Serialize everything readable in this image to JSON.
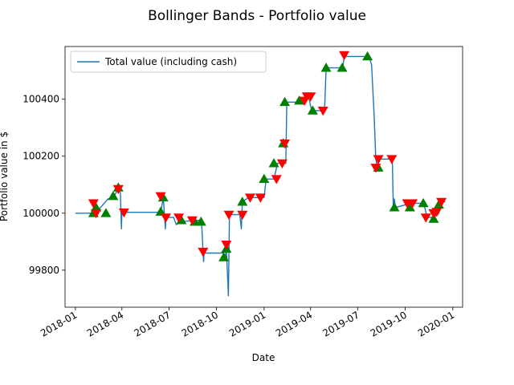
{
  "chart_data": {
    "type": "line",
    "title": "Bollinger Bands - Portfolio value",
    "xlabel": "Date",
    "ylabel": "Portfolio value in $",
    "xlim": [
      "2017-12-12",
      "2020-01-20"
    ],
    "ylim": [
      99670,
      100585
    ],
    "x_ticks": [
      "2018-01",
      "2018-04",
      "2018-07",
      "2018-10",
      "2019-01",
      "2019-04",
      "2019-07",
      "2019-10",
      "2020-01"
    ],
    "y_ticks": [
      99800,
      100000,
      100200,
      100400
    ],
    "grid": false,
    "legend": {
      "placement": "top-left",
      "entries": [
        "Total value (including cash)"
      ]
    },
    "colors": {
      "line": "#1f77b4",
      "buy": "#008000",
      "sell": "#ff0000"
    },
    "series": [
      {
        "name": "Total value (including cash)",
        "points": [
          [
            "2018-01-01",
            100000
          ],
          [
            "2018-02-05",
            100000
          ],
          [
            "2018-02-06",
            100020
          ],
          [
            "2018-02-09",
            100000
          ],
          [
            "2018-03-05",
            100050
          ],
          [
            "2018-03-15",
            100055
          ],
          [
            "2018-03-25",
            100085
          ],
          [
            "2018-03-29",
            100070
          ],
          [
            "2018-03-31",
            99945
          ],
          [
            "2018-04-01",
            100003
          ],
          [
            "2018-06-15",
            100003
          ],
          [
            "2018-06-20",
            100055
          ],
          [
            "2018-06-24",
            99945
          ],
          [
            "2018-06-25",
            99985
          ],
          [
            "2018-07-10",
            99985
          ],
          [
            "2018-07-15",
            99960
          ],
          [
            "2018-07-25",
            99970
          ],
          [
            "2018-08-20",
            99975
          ],
          [
            "2018-09-02",
            99975
          ],
          [
            "2018-09-05",
            99860
          ],
          [
            "2018-09-06",
            99830
          ],
          [
            "2018-09-07",
            99860
          ],
          [
            "2018-10-15",
            99860
          ],
          [
            "2018-10-18",
            99845
          ],
          [
            "2018-10-20",
            99880
          ],
          [
            "2018-10-24",
            99710
          ],
          [
            "2018-10-26",
            99995
          ],
          [
            "2018-11-15",
            99995
          ],
          [
            "2018-11-18",
            99945
          ],
          [
            "2018-11-20",
            100040
          ],
          [
            "2018-12-02",
            100055
          ],
          [
            "2019-01-01",
            100055
          ],
          [
            "2019-01-05",
            100120
          ],
          [
            "2019-01-20",
            100120
          ],
          [
            "2019-01-27",
            100175
          ],
          [
            "2019-02-12",
            100175
          ],
          [
            "2019-02-14",
            100390
          ],
          [
            "2019-03-14",
            100390
          ],
          [
            "2019-03-17",
            100400
          ],
          [
            "2019-03-28",
            100410
          ],
          [
            "2019-04-03",
            100360
          ],
          [
            "2019-04-28",
            100360
          ],
          [
            "2019-05-01",
            100510
          ],
          [
            "2019-06-02",
            100510
          ],
          [
            "2019-06-05",
            100550
          ],
          [
            "2019-07-23",
            100550
          ],
          [
            "2019-07-28",
            100520
          ],
          [
            "2019-08-02",
            100340
          ],
          [
            "2019-08-05",
            100190
          ],
          [
            "2019-08-08",
            100160
          ],
          [
            "2019-08-10",
            100190
          ],
          [
            "2019-09-06",
            100190
          ],
          [
            "2019-09-08",
            100020
          ],
          [
            "2019-09-10",
            100050
          ],
          [
            "2019-09-12",
            100020
          ],
          [
            "2019-10-13",
            100035
          ],
          [
            "2019-11-01",
            100035
          ],
          [
            "2019-11-08",
            100020
          ],
          [
            "2019-11-12",
            99985
          ],
          [
            "2019-11-25",
            99985
          ],
          [
            "2019-12-05",
            100000
          ],
          [
            "2019-12-10",
            100040
          ],
          [
            "2019-12-18",
            100040
          ]
        ]
      }
    ],
    "buy_markers": [
      [
        "2018-02-05",
        100000
      ],
      [
        "2018-02-10",
        100020
      ],
      [
        "2018-03-01",
        100000
      ],
      [
        "2018-03-15",
        100060
      ],
      [
        "2018-03-25",
        100090
      ],
      [
        "2018-06-15",
        100005
      ],
      [
        "2018-06-20",
        100055
      ],
      [
        "2018-07-25",
        99975
      ],
      [
        "2018-08-20",
        99970
      ],
      [
        "2018-09-01",
        99970
      ],
      [
        "2018-10-15",
        99845
      ],
      [
        "2018-10-20",
        99875
      ],
      [
        "2018-11-20",
        100040
      ],
      [
        "2019-01-01",
        100120
      ],
      [
        "2019-01-20",
        100175
      ],
      [
        "2019-02-07",
        100245
      ],
      [
        "2019-02-10",
        100390
      ],
      [
        "2019-03-10",
        100395
      ],
      [
        "2019-04-05",
        100360
      ],
      [
        "2019-05-01",
        100510
      ],
      [
        "2019-06-01",
        100510
      ],
      [
        "2019-07-20",
        100550
      ],
      [
        "2019-08-10",
        100160
      ],
      [
        "2019-09-10",
        100020
      ],
      [
        "2019-10-10",
        100020
      ],
      [
        "2019-11-05",
        100035
      ],
      [
        "2019-11-25",
        99980
      ],
      [
        "2019-12-05",
        100030
      ]
    ],
    "sell_markers": [
      [
        "2018-02-05",
        100035
      ],
      [
        "2018-02-10",
        100000
      ],
      [
        "2018-03-25",
        100085
      ],
      [
        "2018-04-05",
        100003
      ],
      [
        "2018-06-15",
        100060
      ],
      [
        "2018-06-25",
        99985
      ],
      [
        "2018-07-20",
        99985
      ],
      [
        "2018-08-15",
        99975
      ],
      [
        "2018-09-05",
        99865
      ],
      [
        "2018-10-20",
        99890
      ],
      [
        "2018-10-25",
        99995
      ],
      [
        "2018-11-20",
        99995
      ],
      [
        "2018-12-05",
        100055
      ],
      [
        "2018-12-25",
        100055
      ],
      [
        "2019-01-25",
        100120
      ],
      [
        "2019-02-05",
        100175
      ],
      [
        "2019-02-10",
        100245
      ],
      [
        "2019-03-20",
        100395
      ],
      [
        "2019-03-25",
        100410
      ],
      [
        "2019-04-01",
        100410
      ],
      [
        "2019-04-25",
        100360
      ],
      [
        "2019-06-05",
        100555
      ],
      [
        "2019-08-05",
        100160
      ],
      [
        "2019-08-10",
        100190
      ],
      [
        "2019-09-05",
        100190
      ],
      [
        "2019-10-05",
        100035
      ],
      [
        "2019-10-15",
        100035
      ],
      [
        "2019-11-10",
        99985
      ],
      [
        "2019-11-25",
        100000
      ],
      [
        "2019-12-01",
        100005
      ],
      [
        "2019-12-10",
        100040
      ]
    ]
  }
}
